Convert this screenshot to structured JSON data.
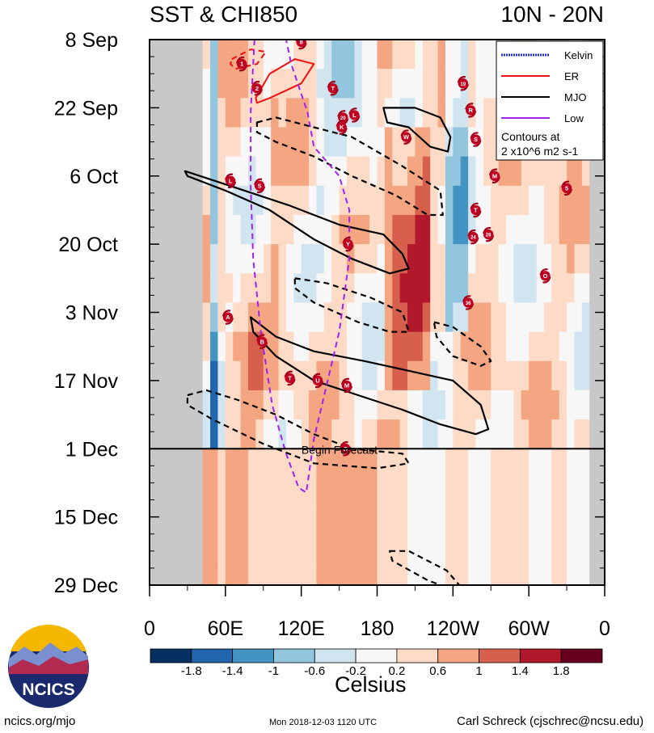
{
  "chart_data": {
    "type": "heatmap",
    "title_left": "SST & CHI850",
    "title_right": "10N - 20N",
    "y_ticks": [
      "8 Sep",
      "22 Sep",
      "6 Oct",
      "20 Oct",
      "3 Nov",
      "17 Nov",
      "1 Dec",
      "15 Dec",
      "29 Dec"
    ],
    "x_ticks": [
      "0",
      "60E",
      "120E",
      "180",
      "120W",
      "60W",
      "0"
    ],
    "x_range_deg_east": [
      0,
      360
    ],
    "y_range": [
      "8 Sep",
      "29 Dec"
    ],
    "forecast_start": "1 Dec",
    "forecast_label": "Begin Forecast",
    "legend": {
      "entries": [
        {
          "name": "Kelvin",
          "color": "#2233dd"
        },
        {
          "name": "ER",
          "color": "#ee1111"
        },
        {
          "name": "MJO",
          "color": "#000000"
        },
        {
          "name": "Low",
          "color": "#a020f0"
        }
      ],
      "note_line1": "Contours at",
      "note_line2": "2 x10^6 m2 s-1"
    },
    "colorbar": {
      "unit_label": "Celsius",
      "tick_labels": [
        "-1.8",
        "-1.4",
        "-1",
        "-0.6",
        "-0.2",
        "0.2",
        "0.6",
        "1",
        "1.4",
        "1.8"
      ],
      "colors": [
        "#053061",
        "#2166ac",
        "#4393c3",
        "#92c5de",
        "#d1e5f0",
        "#f7f7f7",
        "#fddbc7",
        "#f4a582",
        "#d6604d",
        "#b2182b",
        "#67001f"
      ]
    },
    "storms": [
      {
        "label": "8",
        "lon": 120,
        "day": 0.5
      },
      {
        "label": "1",
        "lon": 73,
        "day": 5
      },
      {
        "label": "2",
        "lon": 85,
        "day": 10
      },
      {
        "label": "T",
        "lon": 145,
        "day": 10
      },
      {
        "label": "20",
        "lon": 153,
        "day": 16
      },
      {
        "label": "L",
        "lon": 162,
        "day": 15.5
      },
      {
        "label": "K",
        "lon": 152,
        "day": 18
      },
      {
        "label": "W",
        "lon": 203,
        "day": 20
      },
      {
        "label": "19",
        "lon": 248,
        "day": 9
      },
      {
        "label": "R",
        "lon": 254,
        "day": 14.5
      },
      {
        "label": "S",
        "lon": 258,
        "day": 20.5
      },
      {
        "label": "M",
        "lon": 273,
        "day": 28
      },
      {
        "label": "L",
        "lon": 64,
        "day": 29
      },
      {
        "label": "S",
        "lon": 87,
        "day": 30
      },
      {
        "label": "5",
        "lon": 330,
        "day": 30.5
      },
      {
        "label": "T",
        "lon": 258,
        "day": 35
      },
      {
        "label": "24",
        "lon": 256,
        "day": 40.5
      },
      {
        "label": "28",
        "lon": 268,
        "day": 40
      },
      {
        "label": "Y",
        "lon": 157,
        "day": 42
      },
      {
        "label": "O",
        "lon": 313,
        "day": 48.5
      },
      {
        "label": "36",
        "lon": 252,
        "day": 54
      },
      {
        "label": "A",
        "lon": 62,
        "day": 57
      },
      {
        "label": "B",
        "lon": 89,
        "day": 62
      },
      {
        "label": "T",
        "lon": 111,
        "day": 69.5
      },
      {
        "label": "U",
        "lon": 133,
        "day": 70
      },
      {
        "label": "M",
        "lon": 156,
        "day": 71
      },
      {
        "label": "O",
        "lon": 155,
        "day": 84
      }
    ],
    "contours": [
      {
        "kind": "MJO",
        "sign": "positive",
        "path": [
          [
            28,
            27
          ],
          [
            40,
            28
          ],
          [
            75,
            31
          ],
          [
            110,
            34
          ],
          [
            150,
            38
          ],
          [
            185,
            40
          ],
          [
            200,
            44
          ],
          [
            205,
            47
          ],
          [
            190,
            48
          ],
          [
            160,
            45
          ],
          [
            130,
            41
          ],
          [
            95,
            35
          ],
          [
            60,
            31
          ],
          [
            30,
            28
          ]
        ]
      },
      {
        "kind": "MJO",
        "sign": "positive",
        "path": [
          [
            185,
            14
          ],
          [
            210,
            14
          ],
          [
            230,
            16
          ],
          [
            238,
            20
          ],
          [
            236,
            23
          ],
          [
            222,
            22
          ],
          [
            205,
            18
          ],
          [
            188,
            17
          ]
        ]
      },
      {
        "kind": "MJO",
        "sign": "positive",
        "path": [
          [
            80,
            57
          ],
          [
            100,
            61
          ],
          [
            130,
            64
          ],
          [
            170,
            66
          ],
          [
            205,
            68
          ],
          [
            240,
            70
          ],
          [
            262,
            75
          ],
          [
            268,
            80
          ],
          [
            258,
            81
          ],
          [
            230,
            79
          ],
          [
            200,
            76
          ],
          [
            165,
            73
          ],
          [
            130,
            70
          ],
          [
            100,
            65
          ],
          [
            82,
            60
          ]
        ]
      },
      {
        "kind": "MJO",
        "sign": "negative",
        "path": [
          [
            85,
            17
          ],
          [
            100,
            16
          ],
          [
            130,
            18
          ],
          [
            160,
            20
          ],
          [
            200,
            26
          ],
          [
            230,
            31
          ],
          [
            232,
            36
          ],
          [
            220,
            36
          ],
          [
            195,
            32
          ],
          [
            160,
            28
          ],
          [
            130,
            24
          ],
          [
            100,
            21
          ],
          [
            85,
            19
          ]
        ]
      },
      {
        "kind": "MJO",
        "sign": "negative",
        "path": [
          [
            115,
            49
          ],
          [
            140,
            50
          ],
          [
            175,
            53
          ],
          [
            200,
            56
          ],
          [
            205,
            60
          ],
          [
            190,
            60
          ],
          [
            165,
            58
          ],
          [
            130,
            54
          ],
          [
            115,
            51
          ]
        ]
      },
      {
        "kind": "MJO",
        "sign": "negative",
        "path": [
          [
            225,
            58
          ],
          [
            240,
            59
          ],
          [
            262,
            63
          ],
          [
            270,
            66
          ],
          [
            262,
            67
          ],
          [
            240,
            65
          ],
          [
            227,
            61
          ]
        ]
      },
      {
        "kind": "MJO",
        "sign": "negative",
        "path": [
          [
            30,
            73
          ],
          [
            45,
            72
          ],
          [
            70,
            74
          ],
          [
            100,
            77
          ],
          [
            130,
            81
          ],
          [
            160,
            84
          ],
          [
            200,
            85
          ],
          [
            205,
            87
          ],
          [
            180,
            88
          ],
          [
            130,
            87
          ],
          [
            90,
            83
          ],
          [
            50,
            78
          ],
          [
            30,
            75
          ]
        ]
      },
      {
        "kind": "MJO",
        "sign": "negative",
        "path": [
          [
            190,
            105
          ],
          [
            205,
            105
          ],
          [
            235,
            109
          ],
          [
            245,
            112
          ],
          [
            240,
            113
          ],
          [
            220,
            111
          ],
          [
            192,
            107
          ]
        ]
      },
      {
        "kind": "ER",
        "sign": "negative",
        "path": [
          [
            65,
            4
          ],
          [
            80,
            2
          ],
          [
            92,
            2.5
          ],
          [
            85,
            5
          ],
          [
            68,
            6
          ],
          [
            64,
            5
          ]
        ]
      },
      {
        "kind": "ER",
        "sign": "positive",
        "path": [
          [
            84,
            12
          ],
          [
            95,
            7
          ],
          [
            115,
            4
          ],
          [
            130,
            5
          ],
          [
            120,
            9
          ],
          [
            95,
            12
          ],
          [
            85,
            13
          ]
        ]
      },
      {
        "kind": "Low",
        "sign": "negative",
        "path": [
          [
            83,
            0
          ],
          [
            80,
            15
          ],
          [
            80,
            30
          ],
          [
            82,
            45
          ],
          [
            88,
            60
          ],
          [
            97,
            75
          ],
          [
            108,
            85
          ],
          [
            118,
            92
          ],
          [
            124,
            93
          ],
          [
            130,
            82
          ],
          [
            150,
            60
          ],
          [
            158,
            45
          ],
          [
            158,
            35
          ],
          [
            150,
            28
          ],
          [
            130,
            22
          ],
          [
            125,
            15
          ],
          [
            112,
            5
          ],
          [
            108,
            0
          ]
        ]
      }
    ]
  },
  "footer": {
    "logo_text": "NCICS",
    "url": "ncics.org/mjo",
    "timestamp": "Mon 2018-12-03 1120 UTC",
    "author": "Carl Schreck (cjschrec@ncsu.edu)"
  }
}
